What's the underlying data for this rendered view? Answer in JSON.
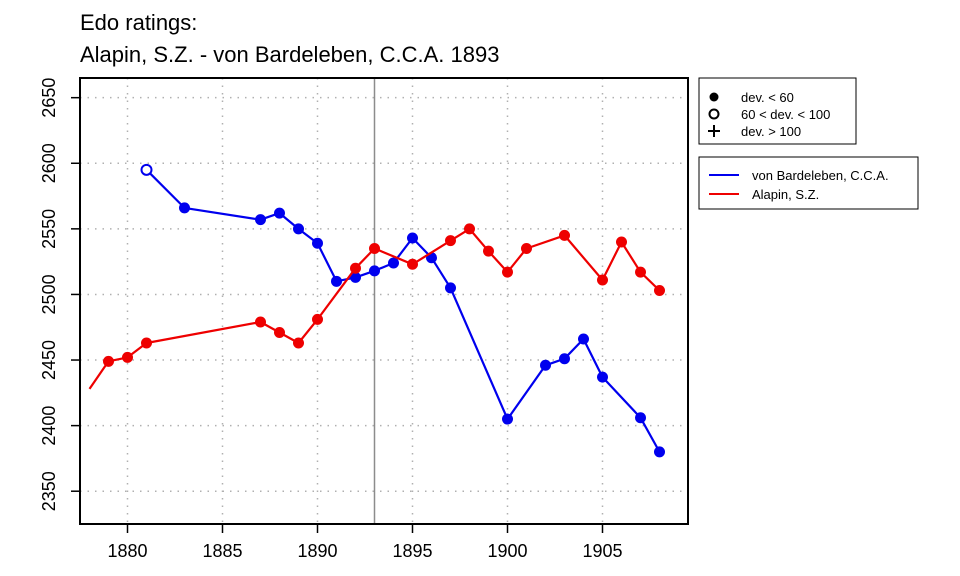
{
  "chart_data": {
    "type": "line",
    "title": "Edo ratings:",
    "subtitle": "Alapin, S.Z. - von Bardeleben, C.C.A. 1893",
    "xlabel": "",
    "ylabel": "",
    "xlim": [
      1877.5,
      1909.5
    ],
    "ylim": [
      2325,
      2665
    ],
    "x_ticks": [
      1880,
      1885,
      1890,
      1895,
      1900,
      1905
    ],
    "y_ticks": [
      2350,
      2400,
      2450,
      2500,
      2550,
      2600,
      2650
    ],
    "grid": true,
    "reference_line_x": 1893,
    "series": [
      {
        "name": "von Bardeleben, C.C.A.",
        "color": "#0000ee",
        "points": [
          {
            "x": 1881,
            "y": 2595,
            "marker": "open"
          },
          {
            "x": 1883,
            "y": 2566,
            "marker": "filled"
          },
          {
            "x": 1887,
            "y": 2557,
            "marker": "filled"
          },
          {
            "x": 1888,
            "y": 2562,
            "marker": "filled"
          },
          {
            "x": 1889,
            "y": 2550,
            "marker": "filled"
          },
          {
            "x": 1890,
            "y": 2539,
            "marker": "filled"
          },
          {
            "x": 1891,
            "y": 2510,
            "marker": "filled"
          },
          {
            "x": 1892,
            "y": 2513,
            "marker": "filled"
          },
          {
            "x": 1893,
            "y": 2518,
            "marker": "filled"
          },
          {
            "x": 1894,
            "y": 2524,
            "marker": "filled"
          },
          {
            "x": 1895,
            "y": 2543,
            "marker": "filled"
          },
          {
            "x": 1896,
            "y": 2528,
            "marker": "filled"
          },
          {
            "x": 1897,
            "y": 2505,
            "marker": "filled"
          },
          {
            "x": 1900,
            "y": 2405,
            "marker": "filled"
          },
          {
            "x": 1902,
            "y": 2446,
            "marker": "filled"
          },
          {
            "x": 1903,
            "y": 2451,
            "marker": "filled"
          },
          {
            "x": 1904,
            "y": 2466,
            "marker": "filled"
          },
          {
            "x": 1905,
            "y": 2437,
            "marker": "filled"
          },
          {
            "x": 1907,
            "y": 2406,
            "marker": "filled"
          },
          {
            "x": 1908,
            "y": 2380,
            "marker": "filled"
          }
        ]
      },
      {
        "name": "Alapin, S.Z.",
        "color": "#ee0000",
        "points": [
          {
            "x": 1878,
            "y": 2428,
            "marker": "none"
          },
          {
            "x": 1879,
            "y": 2449,
            "marker": "filled"
          },
          {
            "x": 1880,
            "y": 2452,
            "marker": "filled"
          },
          {
            "x": 1881,
            "y": 2463,
            "marker": "filled"
          },
          {
            "x": 1887,
            "y": 2479,
            "marker": "filled"
          },
          {
            "x": 1888,
            "y": 2471,
            "marker": "filled"
          },
          {
            "x": 1889,
            "y": 2463,
            "marker": "filled"
          },
          {
            "x": 1890,
            "y": 2481,
            "marker": "filled"
          },
          {
            "x": 1892,
            "y": 2520,
            "marker": "filled"
          },
          {
            "x": 1893,
            "y": 2535,
            "marker": "filled"
          },
          {
            "x": 1895,
            "y": 2523,
            "marker": "filled"
          },
          {
            "x": 1897,
            "y": 2541,
            "marker": "filled"
          },
          {
            "x": 1898,
            "y": 2550,
            "marker": "filled"
          },
          {
            "x": 1899,
            "y": 2533,
            "marker": "filled"
          },
          {
            "x": 1900,
            "y": 2517,
            "marker": "filled"
          },
          {
            "x": 1901,
            "y": 2535,
            "marker": "filled"
          },
          {
            "x": 1903,
            "y": 2545,
            "marker": "filled"
          },
          {
            "x": 1905,
            "y": 2511,
            "marker": "filled"
          },
          {
            "x": 1906,
            "y": 2540,
            "marker": "filled"
          },
          {
            "x": 1907,
            "y": 2517,
            "marker": "filled"
          },
          {
            "x": 1908,
            "y": 2503,
            "marker": "filled"
          }
        ]
      }
    ],
    "marker_legend": {
      "placement": "top-right",
      "items": [
        {
          "symbol": "filled",
          "label": "dev. < 60"
        },
        {
          "symbol": "open",
          "label": "60 < dev. < 100"
        },
        {
          "symbol": "plus",
          "label": "dev. > 100"
        }
      ]
    },
    "series_legend": {
      "placement": "right",
      "items": [
        {
          "label": "von Bardeleben, C.C.A.",
          "color": "#0000ee"
        },
        {
          "label": "Alapin, S.Z.",
          "color": "#ee0000"
        }
      ]
    }
  }
}
